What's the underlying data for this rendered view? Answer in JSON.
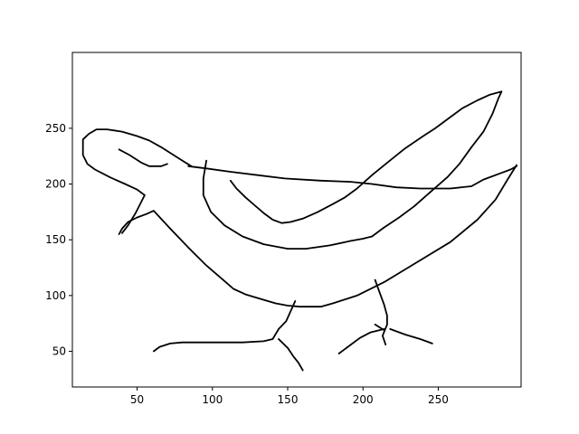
{
  "chart_data": {
    "type": "line",
    "title": "",
    "xlabel": "",
    "ylabel": "",
    "xlim": [
      7,
      305
    ],
    "ylim": [
      18,
      318
    ],
    "xticks": [
      50,
      100,
      150,
      200,
      250
    ],
    "yticks": [
      50,
      100,
      150,
      200,
      250
    ],
    "grid": false,
    "legend": "none",
    "line_color": "#000000",
    "series": [
      {
        "points": [
          [
            38,
            155
          ],
          [
            40,
            160
          ],
          [
            44,
            166
          ],
          [
            50,
            170
          ],
          [
            56,
            173
          ],
          [
            61,
            176
          ],
          [
            72,
            160
          ],
          [
            84,
            143
          ],
          [
            96,
            127
          ],
          [
            108,
            113
          ],
          [
            114,
            106
          ],
          [
            122,
            101
          ],
          [
            132,
            97
          ],
          [
            142,
            93
          ],
          [
            150,
            91
          ],
          [
            158,
            90
          ],
          [
            166,
            90
          ],
          [
            172,
            90
          ],
          [
            180,
            93
          ],
          [
            196,
            100
          ],
          [
            214,
            112
          ],
          [
            236,
            130
          ],
          [
            258,
            148
          ],
          [
            276,
            168
          ],
          [
            288,
            186
          ],
          [
            296,
            204
          ],
          [
            302,
            217
          ]
        ]
      },
      {
        "points": [
          [
            86,
            216
          ],
          [
            80,
            221
          ],
          [
            73,
            227
          ],
          [
            66,
            233
          ],
          [
            58,
            239
          ],
          [
            50,
            243
          ],
          [
            40,
            247
          ],
          [
            30,
            249
          ],
          [
            23,
            249
          ],
          [
            18,
            245
          ],
          [
            14,
            240
          ],
          [
            14,
            226
          ],
          [
            17,
            218
          ],
          [
            22,
            213
          ],
          [
            32,
            206
          ],
          [
            42,
            200
          ],
          [
            50,
            195
          ],
          [
            55,
            190
          ],
          [
            49,
            174
          ],
          [
            44,
            163
          ],
          [
            40,
            156
          ]
        ]
      },
      {
        "points": [
          [
            38,
            231
          ],
          [
            45,
            226
          ],
          [
            53,
            219
          ],
          [
            58,
            216
          ],
          [
            66,
            216
          ],
          [
            70,
            218
          ]
        ]
      },
      {
        "points": [
          [
            84,
            216
          ],
          [
            96,
            214
          ],
          [
            112,
            211
          ],
          [
            130,
            208
          ],
          [
            148,
            205
          ],
          [
            172,
            203
          ],
          [
            192,
            202
          ],
          [
            206,
            200
          ],
          [
            222,
            197
          ],
          [
            238,
            196
          ],
          [
            258,
            196
          ],
          [
            272,
            198
          ],
          [
            280,
            204
          ],
          [
            292,
            210
          ],
          [
            298,
            213
          ],
          [
            302,
            216
          ]
        ]
      },
      {
        "points": [
          [
            96,
            221
          ],
          [
            94,
            205
          ],
          [
            94,
            190
          ],
          [
            99,
            175
          ],
          [
            108,
            163
          ],
          [
            120,
            153
          ],
          [
            134,
            146
          ],
          [
            150,
            142
          ],
          [
            162,
            142
          ],
          [
            178,
            145
          ],
          [
            192,
            149
          ],
          [
            200,
            151
          ],
          [
            206,
            153
          ],
          [
            214,
            161
          ],
          [
            224,
            170
          ],
          [
            234,
            180
          ],
          [
            244,
            192
          ],
          [
            256,
            206
          ],
          [
            264,
            218
          ],
          [
            272,
            233
          ],
          [
            280,
            247
          ],
          [
            286,
            263
          ],
          [
            290,
            277
          ],
          [
            292,
            283
          ],
          [
            284,
            280
          ],
          [
            276,
            275
          ],
          [
            266,
            268
          ],
          [
            258,
            260
          ],
          [
            248,
            250
          ],
          [
            240,
            243
          ],
          [
            228,
            232
          ],
          [
            216,
            219
          ],
          [
            206,
            208
          ],
          [
            196,
            196
          ],
          [
            188,
            188
          ],
          [
            180,
            182
          ],
          [
            170,
            175
          ],
          [
            160,
            169
          ],
          [
            152,
            166
          ],
          [
            146,
            165
          ],
          [
            140,
            168
          ],
          [
            134,
            174
          ],
          [
            128,
            181
          ],
          [
            122,
            188
          ],
          [
            116,
            196
          ],
          [
            112,
            203
          ]
        ]
      },
      {
        "points": [
          [
            155,
            95
          ],
          [
            152,
            86
          ],
          [
            149,
            77
          ],
          [
            144,
            70
          ],
          [
            140,
            61
          ],
          [
            134,
            59
          ],
          [
            120,
            58
          ],
          [
            100,
            58
          ],
          [
            80,
            58
          ],
          [
            72,
            57
          ],
          [
            65,
            54
          ],
          [
            61,
            50
          ]
        ]
      },
      {
        "points": [
          [
            144,
            61
          ],
          [
            150,
            53
          ],
          [
            154,
            45
          ],
          [
            157,
            40
          ],
          [
            160,
            33
          ]
        ]
      },
      {
        "points": [
          [
            208,
            114
          ],
          [
            211,
            103
          ],
          [
            214,
            92
          ],
          [
            216,
            82
          ],
          [
            216,
            74
          ],
          [
            213,
            64
          ],
          [
            215,
            56
          ]
        ]
      },
      {
        "points": [
          [
            214,
            70
          ],
          [
            205,
            67
          ],
          [
            198,
            62
          ],
          [
            192,
            56
          ],
          [
            187,
            51
          ],
          [
            184,
            48
          ]
        ]
      },
      {
        "points": [
          [
            218,
            70
          ],
          [
            228,
            65
          ],
          [
            238,
            61
          ],
          [
            246,
            57
          ]
        ]
      },
      {
        "points": [
          [
            214,
            69
          ],
          [
            208,
            74
          ]
        ]
      }
    ]
  }
}
